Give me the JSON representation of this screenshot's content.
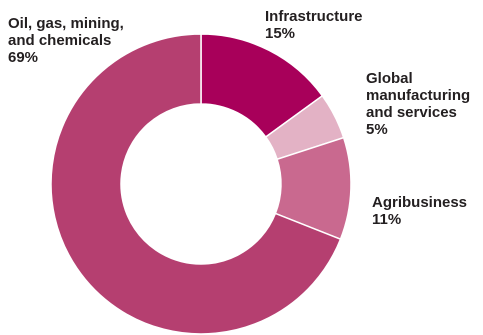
{
  "chart_data": {
    "type": "pie",
    "donut": true,
    "title": "",
    "start_category": "Infrastructure",
    "direction": "clockwise",
    "slices": [
      {
        "name": "Infrastructure",
        "label_lines": [
          "Infrastructure"
        ],
        "value": 15,
        "value_label": "15%",
        "color": "#a8005a"
      },
      {
        "name": "Global manufacturing and services",
        "label_lines": [
          "Global",
          "manufacturing",
          "and services"
        ],
        "value": 5,
        "value_label": "5%",
        "color": "#e3b2c5"
      },
      {
        "name": "Agribusiness",
        "label_lines": [
          "Agribusiness"
        ],
        "value": 11,
        "value_label": "11%",
        "color": "#c9698f"
      },
      {
        "name": "Oil, gas, mining, and chemicals",
        "label_lines": [
          "Oil, gas, mining,",
          "and chemicals"
        ],
        "value": 69,
        "value_label": "69%",
        "color": "#b53f70"
      }
    ]
  }
}
